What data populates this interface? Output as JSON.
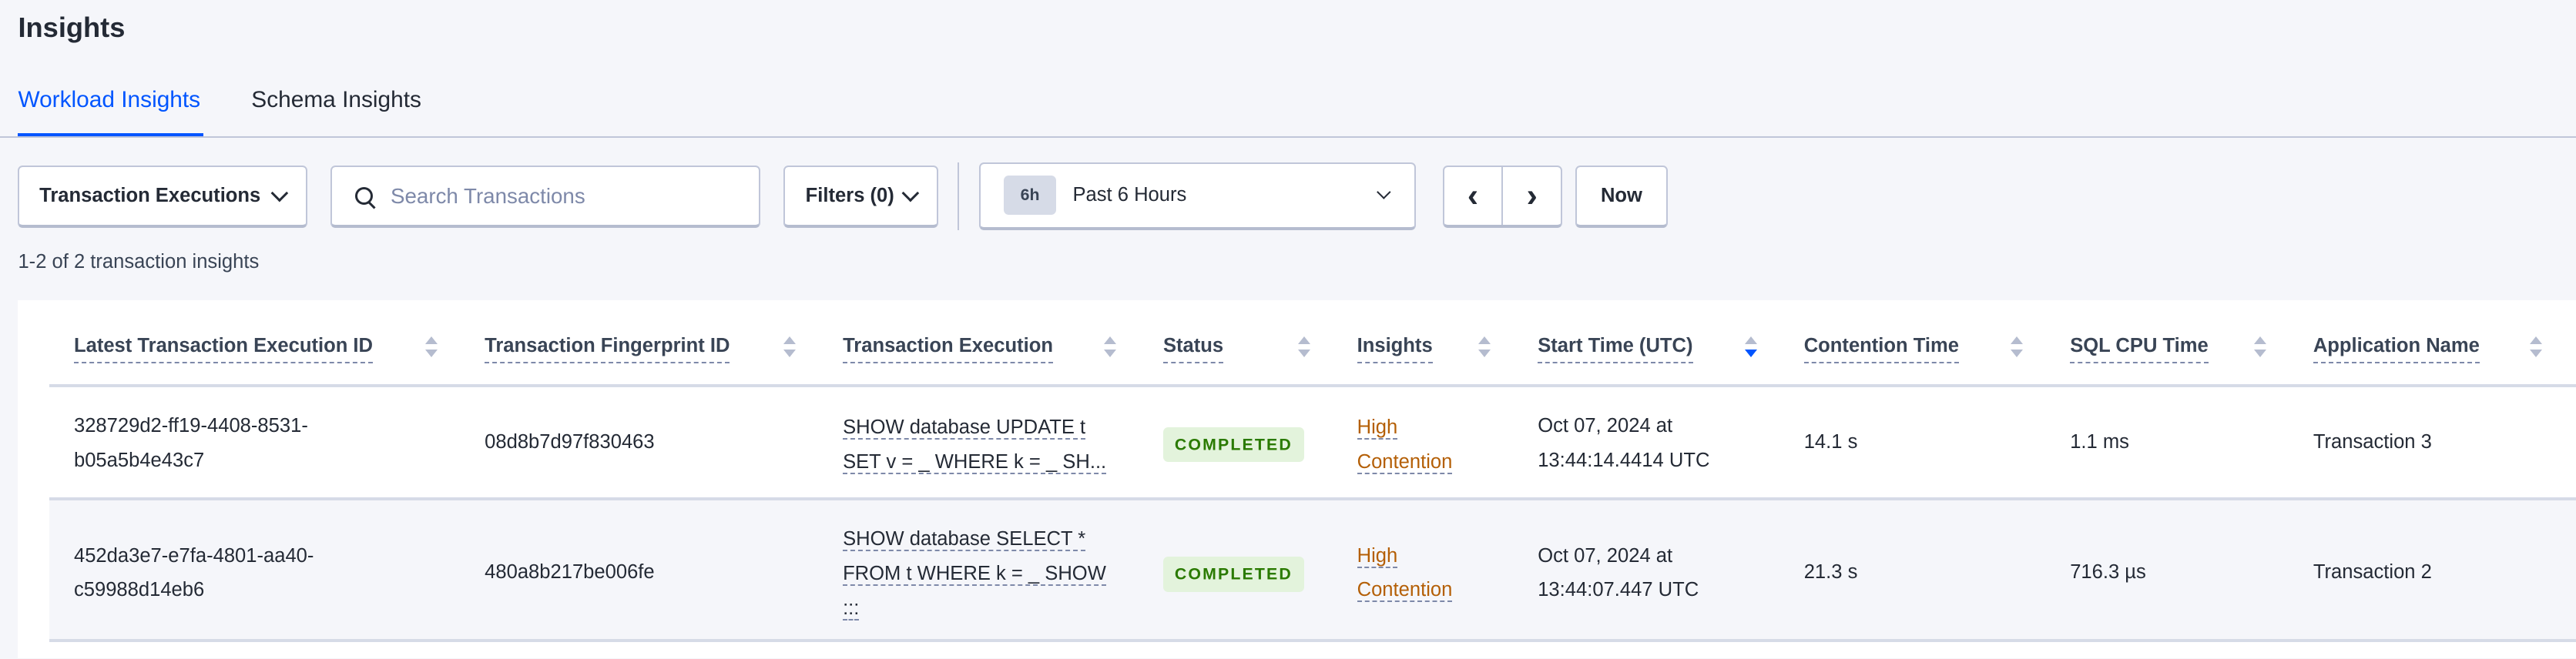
{
  "page": {
    "title": "Insights"
  },
  "tabs": [
    {
      "label": "Workload Insights",
      "active": true
    },
    {
      "label": "Schema Insights",
      "active": false
    }
  ],
  "toolbar": {
    "view_select": "Transaction Executions",
    "search_placeholder": "Search Transactions",
    "filters_label": "Filters (0)",
    "time_badge": "6h",
    "time_range": "Past 6 Hours",
    "now_label": "Now"
  },
  "result_count": "1-2 of 2 transaction insights",
  "table": {
    "columns": [
      "Latest Transaction Execution ID",
      "Transaction Fingerprint ID",
      "Transaction Execution",
      "Status",
      "Insights",
      "Start Time (UTC)",
      "Contention Time",
      "SQL CPU Time",
      "Application Name"
    ],
    "sorted_column": "Start Time (UTC)",
    "sort_direction": "descending",
    "rows": [
      {
        "exec_id_1": "328729d2-ff19-4408-8531-",
        "exec_id_2": "b05a5b4e43c7",
        "fingerprint": "08d8b7d97f830463",
        "query_1": "SHOW database UPDATE t",
        "query_2": "SET v = _ WHERE k = _ SH...",
        "query_3": "",
        "status": "COMPLETED",
        "insight_1": "High",
        "insight_2": "Contention",
        "start_1": "Oct 07, 2024 at",
        "start_2": "13:44:14.4414 UTC",
        "contention": "14.1 s",
        "cpu": "1.1 ms",
        "app": "Transaction 3"
      },
      {
        "exec_id_1": "452da3e7-e7fa-4801-aa40-",
        "exec_id_2": "c59988d14eb6",
        "fingerprint": "480a8b217be006fe",
        "query_1": "SHOW database SELECT *",
        "query_2": "FROM t WHERE k = _ SHOW",
        "query_3": ":::",
        "status": "COMPLETED",
        "insight_1": "High",
        "insight_2": "Contention",
        "start_1": "Oct 07, 2024 at",
        "start_2": "13:44:07.447 UTC",
        "contention": "21.3 s",
        "cpu": "716.3 µs",
        "app": "Transaction 2"
      }
    ]
  },
  "colors": {
    "accent": "#0055ff",
    "insight": "#b45f06",
    "status_completed": "#2a7a00"
  }
}
